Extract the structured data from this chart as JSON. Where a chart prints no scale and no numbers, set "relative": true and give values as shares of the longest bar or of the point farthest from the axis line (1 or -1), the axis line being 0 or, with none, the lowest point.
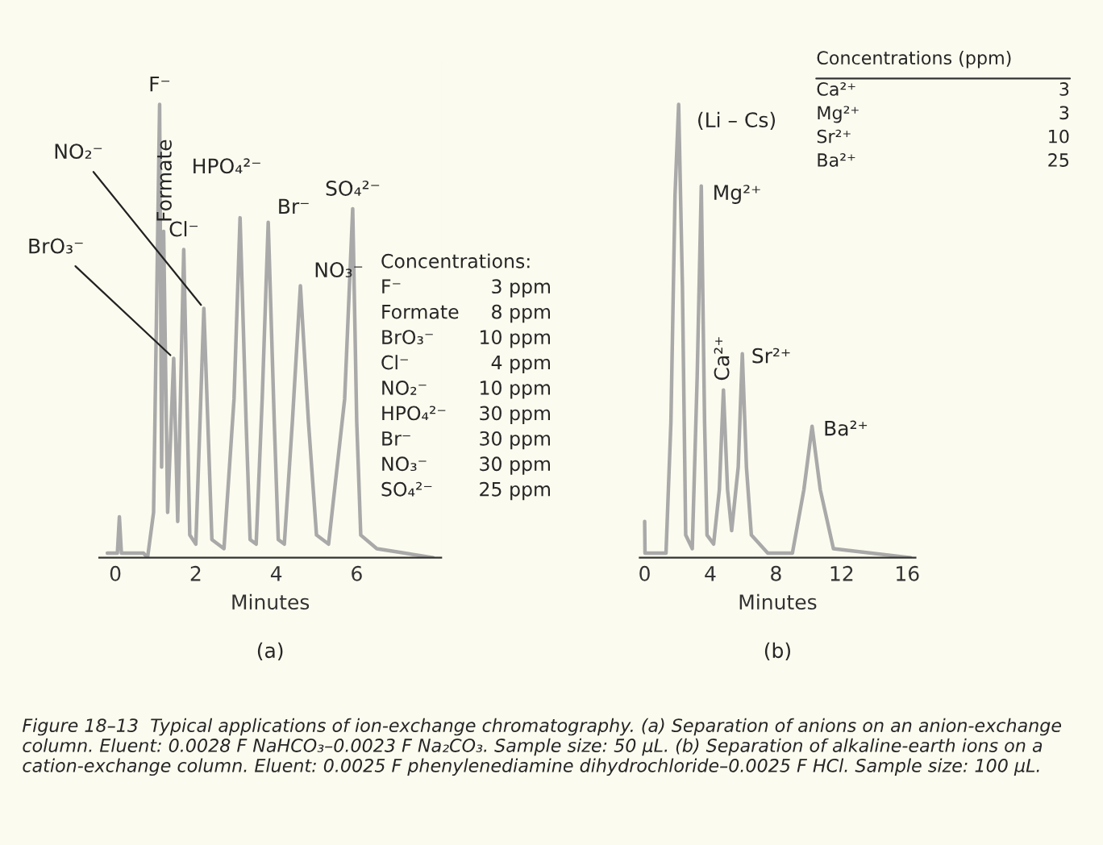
{
  "chart_data": [
    {
      "type": "line",
      "relative": true,
      "xlabel": "Minutes",
      "subtitle": "(a)",
      "tick_labels": "x",
      "xlim": [
        -0.4,
        8.1
      ],
      "xticks": [
        0,
        2,
        4,
        6
      ],
      "x": [
        -0.2,
        0.05,
        0.1,
        0.15,
        0.7,
        0.8,
        0.95,
        1.1,
        1.15,
        1.2,
        1.3,
        1.45,
        1.55,
        1.7,
        1.85,
        2.0,
        2.2,
        2.4,
        2.7,
        2.95,
        3.1,
        3.25,
        3.35,
        3.5,
        3.65,
        3.8,
        3.95,
        4.05,
        4.2,
        4.4,
        4.6,
        4.8,
        5.0,
        5.3,
        5.7,
        5.9,
        6.0,
        6.1,
        6.5,
        7.9
      ],
      "series": [
        {
          "color": "#a9a9a9",
          "values": [
            0.01,
            0.01,
            0.09,
            0.01,
            0.01,
            0.0,
            0.1,
            1.0,
            0.2,
            0.72,
            0.1,
            0.44,
            0.08,
            0.68,
            0.05,
            0.03,
            0.55,
            0.04,
            0.02,
            0.35,
            0.75,
            0.3,
            0.04,
            0.03,
            0.35,
            0.74,
            0.3,
            0.04,
            0.03,
            0.3,
            0.6,
            0.3,
            0.05,
            0.03,
            0.35,
            0.77,
            0.3,
            0.05,
            0.02,
            0.0
          ]
        }
      ],
      "annotations": [
        {
          "text": "F⁻",
          "x": 1.1,
          "y": 1.0
        },
        {
          "text": "Formate",
          "x": 1.2,
          "y": 0.72
        },
        {
          "text": "BrO₃⁻",
          "x": 1.45,
          "y": 0.44
        },
        {
          "text": "Cl⁻",
          "x": 1.7,
          "y": 0.68
        },
        {
          "text": "NO₂⁻",
          "x": 2.2,
          "y": 0.55
        },
        {
          "text": "HPO₄²⁻",
          "x": 3.1,
          "y": 0.75
        },
        {
          "text": "Br⁻",
          "x": 3.8,
          "y": 0.74
        },
        {
          "text": "NO₃⁻",
          "x": 4.6,
          "y": 0.6
        },
        {
          "text": "SO₄²⁻",
          "x": 5.9,
          "y": 0.77
        },
        "Concentrations:",
        "F⁻\t3 ppm",
        "Formate\t8 ppm",
        "BrO₃⁻\t10 ppm",
        "Cl⁻\t4 ppm",
        "NO₂⁻\t10 ppm",
        "HPO₄²⁻\t30 ppm",
        "Br⁻\t30 ppm",
        "NO₃⁻\t30 ppm",
        "SO₄²⁻\t25 ppm"
      ]
    },
    {
      "type": "line",
      "relative": true,
      "xlabel": "Minutes",
      "subtitle": "(b)",
      "tick_labels": "x",
      "xlim": [
        -0.3,
        16.5
      ],
      "xticks": [
        0,
        4,
        8,
        12,
        16
      ],
      "x": [
        0.0,
        0.02,
        1.3,
        1.6,
        1.85,
        2.07,
        2.3,
        2.5,
        2.9,
        3.2,
        3.45,
        3.65,
        3.8,
        4.2,
        4.55,
        4.8,
        5.05,
        5.3,
        5.7,
        5.95,
        6.2,
        6.5,
        7.5,
        9.0,
        9.7,
        10.2,
        10.7,
        11.5,
        16.2
      ],
      "series": [
        {
          "color": "#a9a9a9",
          "values": [
            0.08,
            0.01,
            0.01,
            0.3,
            0.8,
            1.0,
            0.6,
            0.05,
            0.02,
            0.4,
            0.82,
            0.3,
            0.05,
            0.03,
            0.15,
            0.37,
            0.15,
            0.06,
            0.2,
            0.45,
            0.2,
            0.05,
            0.01,
            0.01,
            0.15,
            0.29,
            0.15,
            0.02,
            0.0
          ]
        }
      ],
      "annotations": [
        {
          "text": "(Li – Cs)",
          "x": 2.07,
          "y": 1.0
        },
        {
          "text": "Mg²⁺",
          "x": 3.45,
          "y": 0.82
        },
        {
          "text": "Ca²⁺",
          "x": 4.8,
          "y": 0.37
        },
        {
          "text": "Sr²⁺",
          "x": 5.95,
          "y": 0.45
        },
        {
          "text": "Ba²⁺",
          "x": 10.2,
          "y": 0.29
        },
        "Concentrations (ppm)",
        "Ca²⁺\t3",
        "Mg²⁺\t3",
        "Sr²⁺\t10",
        "Ba²⁺\t25",
        "Figure 18–13  Typical applications of ion-exchange chromatography. (a) Separation of anions on an anion-exchange column. Eluent: 0.0028 F NaHCO₃–0.0023 F Na₂CO₃. Sample size: 50 µL. (b) Separation of alkaline-earth ions on a cation-exchange column. Eluent: 0.0025 F phenylenediamine dihydrochloride–0.0025 F HCl. Sample size: 100 µL."
      ]
    }
  ]
}
